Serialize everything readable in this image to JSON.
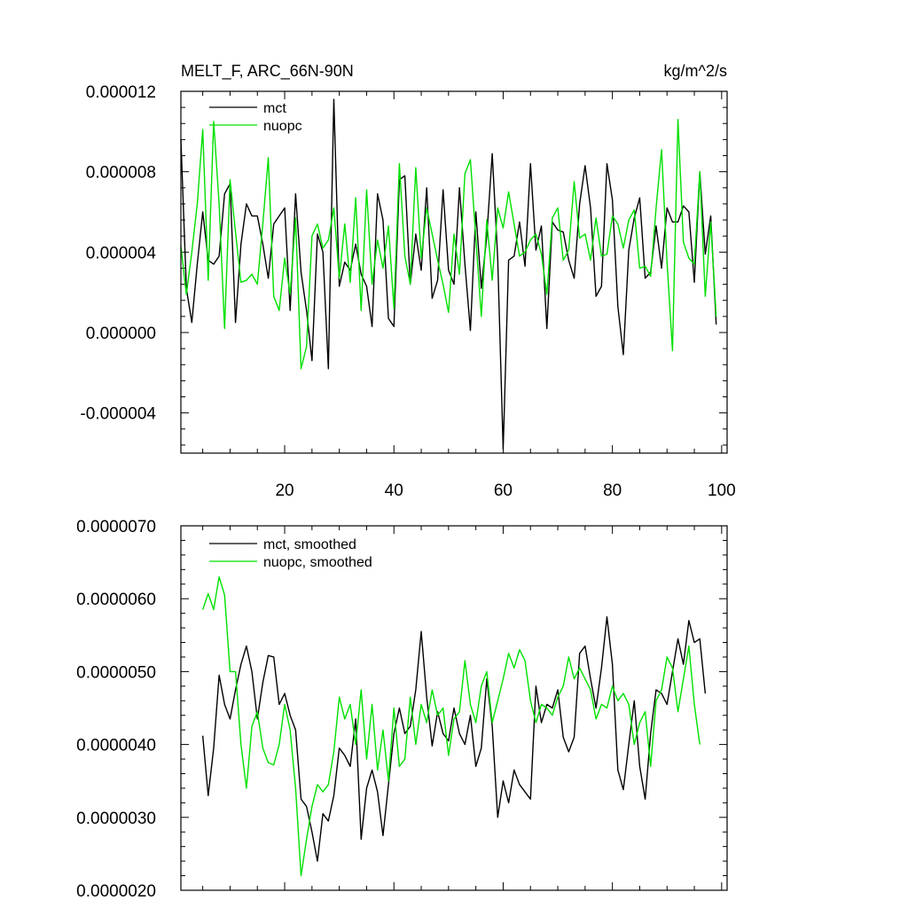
{
  "colors": {
    "mct": "#000000",
    "nuopc": "#00e000",
    "axis": "#000000",
    "background": "#ffffff"
  },
  "chart_data": [
    {
      "type": "line",
      "title": "MELT_F, ARC_66N-90N",
      "units": "kg/m^2/s",
      "ylim": [
        -6e-06,
        1.2e-05
      ],
      "xlim": [
        1,
        101
      ],
      "yticks": [
        {
          "value": -4e-06,
          "label": "-0.000004"
        },
        {
          "value": 0.0,
          "label": "0.000000"
        },
        {
          "value": 4e-06,
          "label": "0.000004"
        },
        {
          "value": 8e-06,
          "label": "0.000008"
        },
        {
          "value": 1.2e-05,
          "label": "0.000012"
        }
      ],
      "xticks": [
        {
          "value": 20,
          "label": "20"
        },
        {
          "value": 40,
          "label": "40"
        },
        {
          "value": 60,
          "label": "60"
        },
        {
          "value": 80,
          "label": "80"
        },
        {
          "value": 100,
          "label": "100"
        }
      ],
      "legend_position": "top-left",
      "series": [
        {
          "name": "mct",
          "x_start": 1,
          "values": [
            9.6e-06,
            2.2e-06,
            5e-07,
            3.4e-06,
            6e-06,
            3.6e-06,
            3.4e-06,
            3.8e-06,
            6.9e-06,
            7.4e-06,
            5e-07,
            4.4e-06,
            6.4e-06,
            5.8e-06,
            5.8e-06,
            4.4e-06,
            2.7e-06,
            5.4e-06,
            5.8e-06,
            6.2e-06,
            1.1e-06,
            6.9e-06,
            3e-06,
            1.1e-06,
            -1.4e-06,
            4.9e-06,
            4e-06,
            -1.8e-06,
            1.16e-05,
            2.3e-06,
            3.5e-06,
            3.1e-06,
            4.4e-06,
            2.9e-06,
            2.3e-06,
            3e-07,
            6.9e-06,
            5.6e-06,
            7e-07,
            3e-07,
            7.6e-06,
            7.8e-06,
            2.4e-06,
            4.9e-06,
            3.1e-06,
            7.2e-06,
            1.7e-06,
            2.6e-06,
            7.1e-06,
            3.1e-06,
            2.4e-06,
            7.2e-06,
            3.4e-06,
            1e-07,
            6e-06,
            2.2e-06,
            4.8e-06,
            8.9e-06,
            3.7e-06,
            -5.8e-06,
            3.6e-06,
            3.8e-06,
            5.5e-06,
            3.3e-06,
            8.4e-06,
            4.1e-06,
            5.3e-06,
            2e-07,
            5.5e-06,
            5.1e-06,
            5e-06,
            3.6e-06,
            2.7e-06,
            6.4e-06,
            8.3e-06,
            6.2e-06,
            1.8e-06,
            2.3e-06,
            8.4e-06,
            6.6e-06,
            1.3e-06,
            -1.1e-06,
            4.1e-06,
            5.7e-06,
            6.7e-06,
            2.7e-06,
            3e-06,
            5.3e-06,
            3.2e-06,
            6.2e-06,
            5.5e-06,
            5.5e-06,
            6.3e-06,
            6e-06,
            2.5e-06,
            8e-06,
            3.9e-06,
            5.8e-06,
            4e-07
          ]
        },
        {
          "name": "nuopc",
          "x_start": 1,
          "values": [
            4.3e-06,
            1.9e-06,
            4e-06,
            6.4e-06,
            1.01e-05,
            2.6e-06,
            1.05e-05,
            6.4e-06,
            2e-07,
            7.6e-06,
            5e-06,
            2.5e-06,
            2.6e-06,
            2.9e-06,
            2.4e-06,
            5.4e-06,
            8.7e-06,
            1.8e-06,
            1.1e-06,
            3.7e-06,
            1.9e-06,
            5.7e-06,
            -1.8e-06,
            -7e-07,
            4.8e-06,
            5.4e-06,
            4.2e-06,
            4.6e-06,
            6.2e-06,
            2.7e-06,
            5.4e-06,
            2.5e-06,
            6.7e-06,
            1.1e-06,
            7.1e-06,
            2.4e-06,
            4.6e-06,
            3.2e-06,
            5.3e-06,
            1.2e-06,
            8.4e-06,
            3.8e-06,
            2.4e-06,
            8.2e-06,
            3.7e-06,
            6.2e-06,
            4.9e-06,
            3.6e-06,
            2.4e-06,
            1e-06,
            4.9e-06,
            2.9e-06,
            7.9e-06,
            8.6e-06,
            4.7e-06,
            8e-07,
            5.6e-06,
            2.6e-06,
            6.2e-06,
            5.2e-06,
            7e-06,
            5.4e-06,
            3.8e-06,
            4e-06,
            4.6e-06,
            4.9e-06,
            3.9e-06,
            1.9e-06,
            5.7e-06,
            6.2e-06,
            3.6e-06,
            4.1e-06,
            7.5e-06,
            4.7e-06,
            4.9e-06,
            3.6e-06,
            5.7e-06,
            3.8e-06,
            3.9e-06,
            5.8e-06,
            5.4e-06,
            4.2e-06,
            5.6e-06,
            6.1e-06,
            3.2e-06,
            3.3e-06,
            2.8e-06,
            6.2e-06,
            9.1e-06,
            3.5e-06,
            -9e-07,
            1.06e-05,
            4.5e-06,
            3.7e-06,
            3.4e-06,
            8e-06,
            1.8e-06,
            5.5e-06,
            8e-07
          ]
        }
      ]
    },
    {
      "type": "line",
      "ylim": [
        2e-06,
        7e-06
      ],
      "xlim": [
        1,
        101
      ],
      "yticks": [
        {
          "value": 2e-06,
          "label": "0.0000020"
        },
        {
          "value": 3e-06,
          "label": "0.0000030"
        },
        {
          "value": 4e-06,
          "label": "0.0000040"
        },
        {
          "value": 5e-06,
          "label": "0.0000050"
        },
        {
          "value": 6e-06,
          "label": "0.0000060"
        },
        {
          "value": 7e-06,
          "label": "0.0000070"
        }
      ],
      "xticks": [
        {
          "value": 20,
          "label": ""
        },
        {
          "value": 40,
          "label": ""
        },
        {
          "value": 60,
          "label": ""
        },
        {
          "value": 80,
          "label": ""
        },
        {
          "value": 100,
          "label": ""
        }
      ],
      "legend_position": "top-left",
      "series": [
        {
          "name": "mct, smoothed",
          "x_start": 5,
          "values": [
            4.12e-06,
            3.3e-06,
            3.95e-06,
            4.95e-06,
            4.55e-06,
            4.35e-06,
            4.75e-06,
            5.1e-06,
            5.35e-06,
            5e-06,
            4.35e-06,
            4.85e-06,
            5.22e-06,
            5.2e-06,
            4.55e-06,
            4.7e-06,
            4.4e-06,
            4.2e-06,
            3.25e-06,
            3.15e-06,
            2.8e-06,
            2.4e-06,
            3.05e-06,
            2.95e-06,
            3.3e-06,
            3.95e-06,
            3.85e-06,
            3.7e-06,
            4.35e-06,
            2.7e-06,
            3.4e-06,
            3.65e-06,
            3.35e-06,
            2.75e-06,
            3.45e-06,
            4.15e-06,
            4.5e-06,
            4.15e-06,
            4.25e-06,
            4.75e-06,
            5.55e-06,
            4.65e-06,
            3.98e-06,
            4.45e-06,
            4.15e-06,
            4.05e-06,
            4.5e-06,
            4.15e-06,
            4e-06,
            4.4e-06,
            3.7e-06,
            3.95e-06,
            4.9e-06,
            4.25e-06,
            3e-06,
            3.5e-06,
            3.2e-06,
            3.65e-06,
            3.45e-06,
            3.35e-06,
            3.25e-06,
            4.8e-06,
            4.3e-06,
            4.55e-06,
            4.5e-06,
            4.75e-06,
            4.1e-06,
            3.9e-06,
            4.1e-06,
            5.25e-06,
            5.35e-06,
            4.9e-06,
            4.5e-06,
            5.05e-06,
            5.75e-06,
            5.1e-06,
            3.65e-06,
            3.38e-06,
            4e-06,
            4.6e-06,
            3.7e-06,
            3.25e-06,
            4.15e-06,
            4.75e-06,
            4.7e-06,
            4.55e-06,
            5e-06,
            5.45e-06,
            5.1e-06,
            5.7e-06,
            5.4e-06,
            5.45e-06,
            4.7e-06
          ]
        },
        {
          "name": "nuopc, smoothed",
          "x_start": 5,
          "values": [
            5.85e-06,
            6.07e-06,
            5.85e-06,
            6.3e-06,
            6.05e-06,
            5e-06,
            5e-06,
            4e-06,
            3.4e-06,
            4.25e-06,
            4.45e-06,
            3.95e-06,
            3.75e-06,
            3.72e-06,
            4e-06,
            4.55e-06,
            4.2e-06,
            3.4e-06,
            2.2e-06,
            2.7e-06,
            3.15e-06,
            3.45e-06,
            3.35e-06,
            3.45e-06,
            3.9e-06,
            4.65e-06,
            4.35e-06,
            4.55e-06,
            4e-06,
            4.75e-06,
            3.8e-06,
            4.55e-06,
            3.65e-06,
            4.2e-06,
            3.5e-06,
            4.5e-06,
            3.7e-06,
            3.8e-06,
            4.65e-06,
            4e-06,
            4.55e-06,
            4.3e-06,
            4.75e-06,
            4.4e-06,
            4.5e-06,
            3.85e-06,
            4.35e-06,
            4.45e-06,
            5.15e-06,
            4.55e-06,
            4.3e-06,
            4.8e-06,
            5e-06,
            4.3e-06,
            4.6e-06,
            4.9e-06,
            5.25e-06,
            5.05e-06,
            5.3e-06,
            5.15e-06,
            4.6e-06,
            4.3e-06,
            4.55e-06,
            4.5e-06,
            4.4e-06,
            4.65e-06,
            4.8e-06,
            5.2e-06,
            4.9e-06,
            5.05e-06,
            4.9e-06,
            4.75e-06,
            4.35e-06,
            4.55e-06,
            4.5e-06,
            4.8e-06,
            4.6e-06,
            4.7e-06,
            4.55e-06,
            4e-06,
            4.3e-06,
            4.45e-06,
            3.7e-06,
            4.6e-06,
            4.75e-06,
            5.2e-06,
            5.05e-06,
            4.45e-06,
            4.9e-06,
            5.35e-06,
            4.55e-06,
            4e-06
          ]
        }
      ]
    }
  ]
}
